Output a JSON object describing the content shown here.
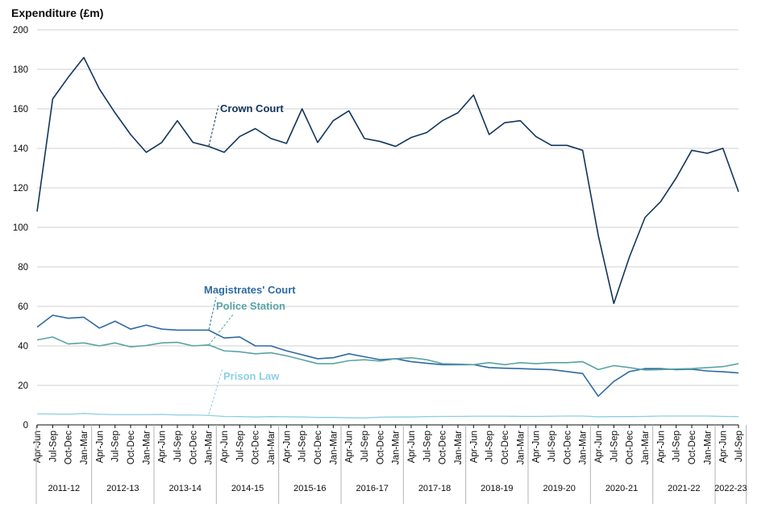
{
  "chart_data": {
    "type": "line",
    "title": "",
    "ylabel": "Expenditure (£m)",
    "xlabel": "",
    "ylim": [
      0,
      200
    ],
    "yticks": [
      "0",
      "20",
      "40",
      "60",
      "80",
      "100",
      "120",
      "140",
      "160",
      "180",
      "200"
    ],
    "grid": true,
    "x": [
      "Apr-Jun",
      "Jul-Sep",
      "Oct-Dec",
      "Jan-Mar",
      "Apr-Jun",
      "Jul-Sep",
      "Oct-Dec",
      "Jan-Mar",
      "Apr-Jun",
      "Jul-Sep",
      "Oct-Dec",
      "Jan-Mar",
      "Apr-Jun",
      "Jul-Sep",
      "Oct-Dec",
      "Jan-Mar",
      "Apr-Jun",
      "Jul-Sep",
      "Oct-Dec",
      "Jan-Mar",
      "Apr-Jun",
      "Jul-Sep",
      "Oct-Dec",
      "Jan-Mar",
      "Apr-Jun",
      "Jul-Sep",
      "Oct-Dec",
      "Jan-Mar",
      "Apr-Jun",
      "Jul-Sep",
      "Oct-Dec",
      "Jan-Mar",
      "Apr-Jun",
      "Jul-Sep",
      "Oct-Dec",
      "Jan-Mar",
      "Apr-Jun",
      "Jul-Sep",
      "Oct-Dec",
      "Jan-Mar",
      "Apr-Jun",
      "Jul-Sep",
      "Oct-Dec",
      "Jan-Mar",
      "Apr-Jun",
      "Jul-Sep"
    ],
    "years": [
      "2011-12",
      "2012-13",
      "2013-14",
      "2014-15",
      "2015-16",
      "2016-17",
      "2017-18",
      "2018-19",
      "2019-20",
      "2020-21",
      "2021-22",
      "2022-23"
    ],
    "series": [
      {
        "name": "Crown Court",
        "color": "#12355b",
        "values": [
          108,
          165,
          176,
          186,
          170,
          158,
          147,
          138,
          143,
          154,
          143,
          141,
          138,
          146,
          150,
          145,
          142.5,
          160,
          143,
          154,
          159,
          145,
          143.5,
          141,
          145.5,
          148,
          154,
          158,
          167,
          147,
          153,
          154,
          146,
          141.5,
          141.5,
          139,
          96,
          61.5,
          85,
          105,
          113,
          125,
          139,
          137.5,
          140,
          118
        ]
      },
      {
        "name": "Magistrates' Court",
        "color": "#2e6aa3",
        "values": [
          49.5,
          55.5,
          54,
          54.5,
          49,
          52.5,
          48.5,
          50.5,
          48.5,
          48,
          48,
          48,
          44,
          44.5,
          40,
          40,
          37.5,
          35.5,
          33.5,
          34,
          36,
          34.5,
          33,
          33.5,
          32,
          31.2,
          30.5,
          30.5,
          30.5,
          29,
          28.7,
          28.5,
          28.2,
          28,
          27,
          26,
          14.5,
          22,
          27,
          28.5,
          28.5,
          28,
          28.2,
          27.3,
          26.9,
          26.3
        ]
      },
      {
        "name": "Police Station",
        "color": "#5aa3a3",
        "values": [
          43,
          44.5,
          41,
          41.5,
          40,
          41.5,
          39.5,
          40.2,
          41.5,
          41.8,
          40,
          40.5,
          37.5,
          37,
          36,
          36.5,
          35,
          33,
          31,
          31,
          32.5,
          33,
          32.3,
          33.5,
          34,
          33,
          31,
          30.8,
          30.5,
          31.5,
          30.5,
          31.5,
          31,
          31.5,
          31.5,
          32,
          28,
          30,
          29,
          27.8,
          28,
          28.3,
          28.5,
          29,
          29.5,
          31
        ]
      },
      {
        "name": "Prison Law",
        "color": "#8ccfe3",
        "values": [
          5.6,
          5.5,
          5.4,
          5.8,
          5.4,
          5.2,
          5.2,
          5.2,
          5.3,
          5,
          5,
          4.8,
          4.3,
          4.2,
          4,
          4.2,
          4.1,
          4,
          3.8,
          3.8,
          3.6,
          3.5,
          3.9,
          4,
          4,
          4.2,
          4.3,
          4.3,
          4.4,
          4.4,
          4.4,
          4.3,
          4.3,
          4.4,
          4.5,
          4.5,
          4.1,
          4.2,
          4.2,
          4.3,
          4.5,
          4.5,
          4.5,
          4.5,
          4.3,
          4.2
        ]
      }
    ],
    "annotations": [
      {
        "text": "Crown Court",
        "color": "#12355b"
      },
      {
        "text": "Magistrates' Court",
        "color": "#2e6aa3"
      },
      {
        "text": "Police Station",
        "color": "#5aa3a3"
      },
      {
        "text": "Prison Law",
        "color": "#8ccfe3"
      }
    ]
  }
}
